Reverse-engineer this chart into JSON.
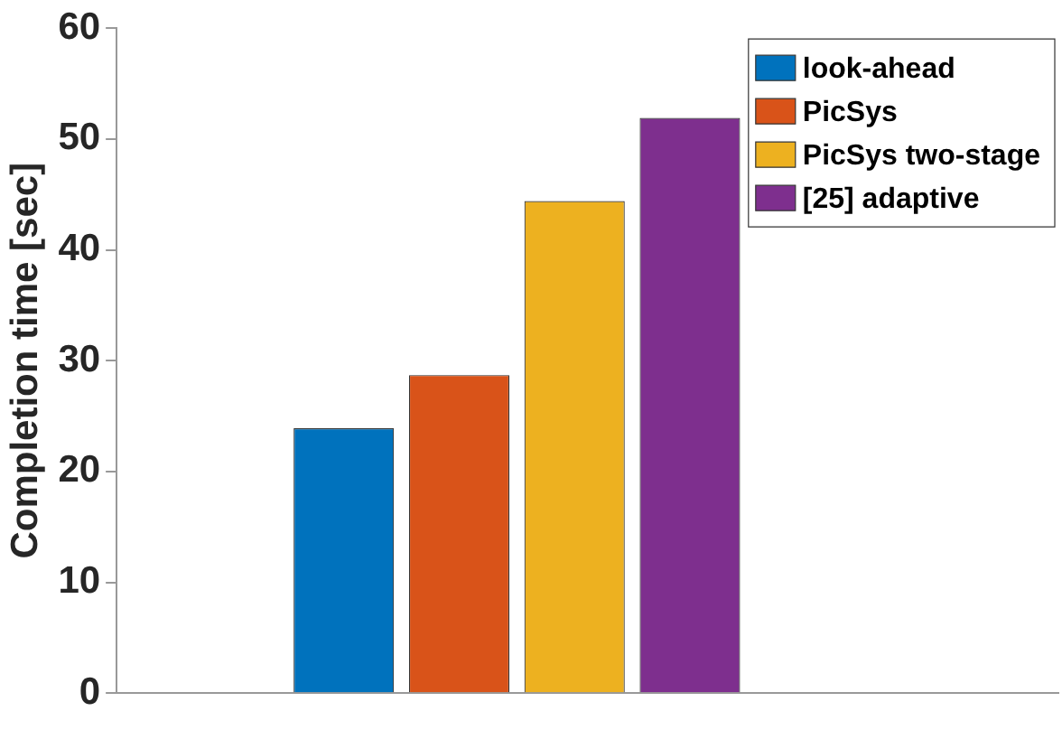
{
  "chart_data": {
    "type": "bar",
    "ylabel": "Completion time [sec]",
    "categories": [
      null
    ],
    "series": [
      {
        "name": "look-ahead",
        "color": "#0072bd",
        "values": [
          23.9
        ]
      },
      {
        "name": "PicSys",
        "color": "#d95319",
        "values": [
          28.7
        ]
      },
      {
        "name": "PicSys two-stage",
        "color": "#edb120",
        "values": [
          44.4
        ]
      },
      {
        "name": "[25] adaptive",
        "color": "#7e2f8e",
        "values": [
          51.9
        ]
      }
    ],
    "ylim": [
      0,
      60
    ],
    "yticks": [
      0,
      10,
      20,
      30,
      40,
      50,
      60
    ],
    "grid": false,
    "legend": "top right"
  }
}
